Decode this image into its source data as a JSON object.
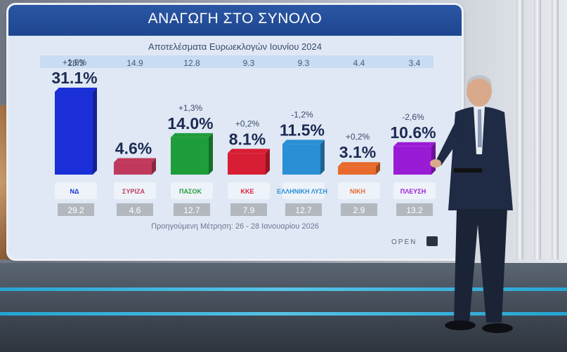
{
  "chart_data": {
    "type": "bar",
    "title": "ΑΝΑΓΩΓΗ ΣΤΟ ΣΥΝΟΛΟ",
    "subtitle": "Αποτελέσματα Ευρωεκλογών Ιουνίου 2024",
    "categories": [
      "ΝΔ",
      "ΣΥΡΙΖΑ",
      "ΠΑΣΟΚ",
      "ΚΚΕ",
      "ΕΛΛΗΝΙΚΗ ΛΥΣΗ",
      "ΝΙΚΗ",
      "ΠΛΕΥΣΗ"
    ],
    "values": [
      31.1,
      4.6,
      14.0,
      8.1,
      11.5,
      3.1,
      10.6
    ],
    "value_labels": [
      "31.1%",
      "4.6%",
      "14.0%",
      "8.1%",
      "11.5%",
      "3.1%",
      "10.6%"
    ],
    "change_labels": [
      "+1,9%",
      "",
      "+1,3%",
      "+0,2%",
      "-1,2%",
      "+0,2%",
      "-2,6%"
    ],
    "euro_2024_results": [
      "28.3",
      "14.9",
      "12.8",
      "9.3",
      "9.3",
      "4.4",
      "3.4"
    ],
    "previous_measurement": [
      "29.2",
      "4.6",
      "12.7",
      "7.9",
      "12.7",
      "2.9",
      "13.2"
    ],
    "colors": [
      "#1a2fd8",
      "#c0395c",
      "#1f9d3a",
      "#d81e34",
      "#2a8fd4",
      "#e86a2c",
      "#9a1bd6"
    ],
    "ylim": [
      0,
      35
    ],
    "legend": "none",
    "grid": false
  },
  "footnote": "Προηγούμενη Μέτρηση: 26 - 28 Ιανουαρίου 2026",
  "brand": "OPEN"
}
